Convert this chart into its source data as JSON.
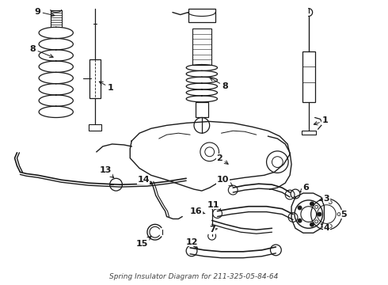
{
  "title": "Spring Insulator Diagram for 211-325-05-84-64",
  "bg": "#f5f5f5",
  "lc": "#1a1a1a",
  "font_size": 8,
  "font_weight": "bold",
  "figsize": [
    4.9,
    3.6
  ],
  "dpi": 100
}
